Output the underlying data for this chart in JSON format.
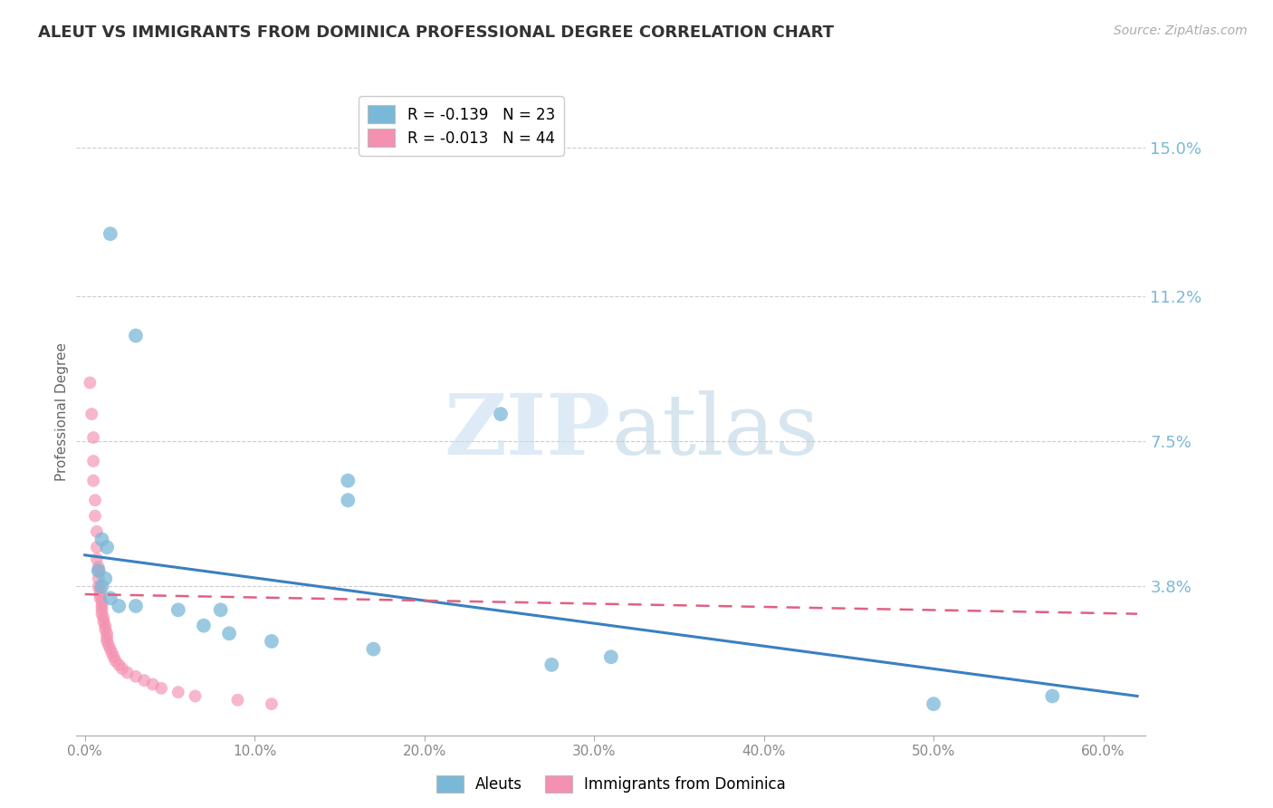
{
  "title": "ALEUT VS IMMIGRANTS FROM DOMINICA PROFESSIONAL DEGREE CORRELATION CHART",
  "source": "Source: ZipAtlas.com",
  "ylabel": "Professional Degree",
  "x_tick_labels": [
    "0.0%",
    "10.0%",
    "20.0%",
    "30.0%",
    "40.0%",
    "50.0%",
    "60.0%"
  ],
  "x_tick_values": [
    0.0,
    0.1,
    0.2,
    0.3,
    0.4,
    0.5,
    0.6
  ],
  "y_tick_labels": [
    "15.0%",
    "11.2%",
    "7.5%",
    "3.8%"
  ],
  "y_tick_values": [
    0.15,
    0.112,
    0.075,
    0.038
  ],
  "ylim": [
    0.0,
    0.165
  ],
  "xlim": [
    -0.005,
    0.625
  ],
  "legend_entries": [
    {
      "label": "R = -0.139   N = 23",
      "color": "#a8c8e8"
    },
    {
      "label": "R = -0.013   N = 44",
      "color": "#f4a0b8"
    }
  ],
  "legend_bottom": [
    "Aleuts",
    "Immigrants from Dominica"
  ],
  "aleuts_scatter": [
    [
      0.015,
      0.128
    ],
    [
      0.03,
      0.102
    ],
    [
      0.155,
      0.06
    ],
    [
      0.245,
      0.082
    ],
    [
      0.155,
      0.065
    ],
    [
      0.01,
      0.05
    ],
    [
      0.013,
      0.048
    ],
    [
      0.008,
      0.042
    ],
    [
      0.012,
      0.04
    ],
    [
      0.01,
      0.038
    ],
    [
      0.015,
      0.035
    ],
    [
      0.02,
      0.033
    ],
    [
      0.03,
      0.033
    ],
    [
      0.055,
      0.032
    ],
    [
      0.08,
      0.032
    ],
    [
      0.07,
      0.028
    ],
    [
      0.085,
      0.026
    ],
    [
      0.11,
      0.024
    ],
    [
      0.17,
      0.022
    ],
    [
      0.275,
      0.018
    ],
    [
      0.31,
      0.02
    ],
    [
      0.5,
      0.008
    ],
    [
      0.57,
      0.01
    ]
  ],
  "dominica_scatter": [
    [
      0.003,
      0.09
    ],
    [
      0.004,
      0.082
    ],
    [
      0.005,
      0.076
    ],
    [
      0.005,
      0.07
    ],
    [
      0.005,
      0.065
    ],
    [
      0.006,
      0.06
    ],
    [
      0.006,
      0.056
    ],
    [
      0.007,
      0.052
    ],
    [
      0.007,
      0.048
    ],
    [
      0.007,
      0.045
    ],
    [
      0.008,
      0.043
    ],
    [
      0.008,
      0.042
    ],
    [
      0.008,
      0.04
    ],
    [
      0.008,
      0.038
    ],
    [
      0.009,
      0.037
    ],
    [
      0.009,
      0.036
    ],
    [
      0.009,
      0.035
    ],
    [
      0.01,
      0.034
    ],
    [
      0.01,
      0.033
    ],
    [
      0.01,
      0.032
    ],
    [
      0.01,
      0.031
    ],
    [
      0.011,
      0.03
    ],
    [
      0.011,
      0.029
    ],
    [
      0.012,
      0.028
    ],
    [
      0.012,
      0.027
    ],
    [
      0.013,
      0.026
    ],
    [
      0.013,
      0.025
    ],
    [
      0.013,
      0.024
    ],
    [
      0.014,
      0.023
    ],
    [
      0.015,
      0.022
    ],
    [
      0.016,
      0.021
    ],
    [
      0.017,
      0.02
    ],
    [
      0.018,
      0.019
    ],
    [
      0.02,
      0.018
    ],
    [
      0.022,
      0.017
    ],
    [
      0.025,
      0.016
    ],
    [
      0.03,
      0.015
    ],
    [
      0.035,
      0.014
    ],
    [
      0.04,
      0.013
    ],
    [
      0.045,
      0.012
    ],
    [
      0.055,
      0.011
    ],
    [
      0.065,
      0.01
    ],
    [
      0.09,
      0.009
    ],
    [
      0.11,
      0.008
    ]
  ],
  "aleuts_line": {
    "x": [
      0.0,
      0.62
    ],
    "y": [
      0.046,
      0.01
    ]
  },
  "dominica_line": {
    "x": [
      0.0,
      0.62
    ],
    "y": [
      0.036,
      0.031
    ]
  },
  "aleuts_color": "#7ab8d8",
  "dominica_color": "#f490b0",
  "aleuts_line_color": "#3a80c0",
  "dominica_line_color": "#e06080",
  "watermark_zip": "ZIP",
  "watermark_atlas": "atlas",
  "background_color": "#ffffff",
  "grid_color": "#cccccc",
  "title_color": "#333333",
  "source_color": "#aaaaaa",
  "ytick_color": "#7ab8d8",
  "xtick_color": "#888888"
}
